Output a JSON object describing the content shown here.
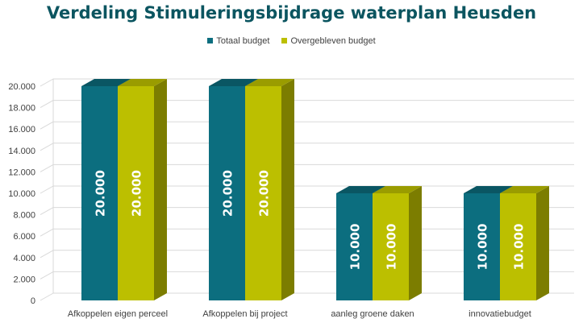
{
  "chart_data": {
    "type": "bar",
    "title": "Verdeling Stimuleringsbijdrage waterplan Heusden",
    "categories": [
      "Afkoppelen eigen perceel",
      "Afkoppelen bij project",
      "aanleg groene daken",
      "innovatiebudget"
    ],
    "series": [
      {
        "name": "Totaal budget",
        "values": [
          20000,
          20000,
          10000,
          10000
        ],
        "labels": [
          "20.000",
          "20.000",
          "10.000",
          "10.000"
        ]
      },
      {
        "name": "Overgebleven budget",
        "values": [
          20000,
          20000,
          10000,
          10000
        ],
        "labels": [
          "20.000",
          "20.000",
          "10.000",
          "10.000"
        ]
      }
    ],
    "ylim": [
      0,
      20000
    ],
    "yticks": [
      "0",
      "2.000",
      "4.000",
      "6.000",
      "8.000",
      "10.000",
      "12.000",
      "14.000",
      "16.000",
      "18.000",
      "20.000"
    ],
    "grid": true,
    "legend_position": "top",
    "three_d": true
  },
  "colors": {
    "series": [
      "#0c6e7f",
      "#bcbf00"
    ],
    "series_top": [
      "#0a5663",
      "#9a9c00"
    ],
    "series_side": [
      "#074753",
      "#7c7d00"
    ],
    "title": "#0b5560",
    "grid": "#d9d9d9",
    "axis_text": "#404040"
  }
}
